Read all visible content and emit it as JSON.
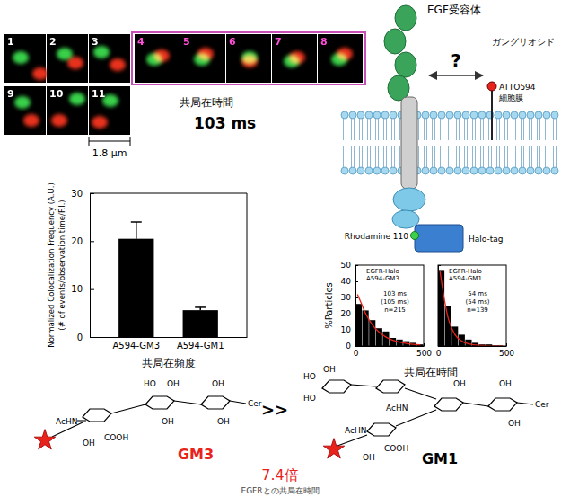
{
  "microscopy": {
    "frames": [
      "1",
      "2",
      "3",
      "4",
      "5",
      "6",
      "7",
      "8",
      "9",
      "10",
      "11"
    ],
    "scale_bar": "1.8 μm",
    "time_label": "共局在時間",
    "time_value": "103 ms"
  },
  "schematic": {
    "receptor": "EGF受容体",
    "question": "?",
    "ganglioside": "ガングリオシド",
    "dye": "ATTO594",
    "membrane": "細胞膜",
    "tag": "Halo-tag",
    "fluorophore": "Rhodamine 110"
  },
  "chart_data": [
    {
      "type": "bar",
      "ylabel": [
        "Normalized Colocalization Frequency (A.U.)",
        "(# of events/observation time/F.I.)"
      ],
      "xlabel": "共局在頻度",
      "categories": [
        "A594-GM3",
        "A594-GM1"
      ],
      "values": [
        20.5,
        5.6
      ],
      "errors": [
        3.5,
        0.6
      ],
      "color": "#000000",
      "ylim": [
        0,
        30
      ],
      "yticks": [
        0,
        10,
        20,
        30
      ]
    },
    {
      "type": "histogram",
      "title": [
        "EGFR-Halo",
        "A594-GM3"
      ],
      "annotation": [
        "103 ms",
        "(105 ms)",
        "n=215"
      ],
      "ylabel": "%Particles",
      "xlabel": "共局在時間",
      "bins": [
        0,
        50,
        100,
        150,
        200,
        250,
        300,
        350,
        400,
        450,
        500
      ],
      "counts": [
        26,
        22,
        16,
        11,
        9,
        5,
        4,
        3,
        2,
        1
      ],
      "color": "#000000",
      "fit": {
        "x": [
          15,
          40,
          75,
          125,
          175,
          225,
          275,
          325,
          375,
          425,
          475
        ],
        "y": [
          32,
          27,
          20,
          13,
          8.5,
          5.5,
          3.6,
          2.4,
          1.6,
          1,
          0.7
        ],
        "color": "#e8231b"
      },
      "xlim": [
        0,
        500
      ],
      "xticks": [
        0,
        500
      ],
      "ylim": [
        0,
        50
      ],
      "yticks": [
        0,
        10,
        20,
        30,
        40,
        50
      ]
    },
    {
      "type": "histogram",
      "title": [
        "EGFR-Halo",
        "A594-GM1"
      ],
      "annotation": [
        "54 ms",
        "(54 ms)",
        "n=139"
      ],
      "bins": [
        0,
        50,
        100,
        150,
        200,
        250,
        300,
        350,
        400,
        450,
        500
      ],
      "counts": [
        47,
        25,
        12,
        7,
        4,
        2,
        1,
        1,
        0,
        0
      ],
      "color": "#000000",
      "fit": {
        "x": [
          15,
          40,
          75,
          125,
          175,
          225,
          275,
          325,
          375,
          425,
          475
        ],
        "y": [
          46,
          32,
          17,
          7,
          3,
          1.3,
          0.6,
          0.3,
          0.1,
          0.05,
          0.02
        ],
        "color": "#e8231b"
      },
      "xlim": [
        0,
        500
      ],
      "xticks": [
        0,
        500
      ],
      "ylim": [
        0,
        50
      ],
      "yticks": [
        0,
        10,
        20,
        30,
        40,
        50
      ],
      "tick_labels": "x"
    }
  ],
  "structures": {
    "left": {
      "name": "GM3",
      "labels": [
        "AcHN",
        "OH",
        "COOH",
        "HO",
        "OH",
        "OH",
        "OH",
        "OH",
        "Cer"
      ]
    },
    "comparator": ">>",
    "right": {
      "name": "GM1",
      "labels": [
        "HO",
        "OH",
        "HO",
        "AcHN",
        "AcHN",
        "COOH",
        "OH",
        "OH",
        "OH",
        "OH",
        "Cer"
      ]
    },
    "ratio": "7.4倍"
  },
  "caption": "EGFRとの共局在時間"
}
